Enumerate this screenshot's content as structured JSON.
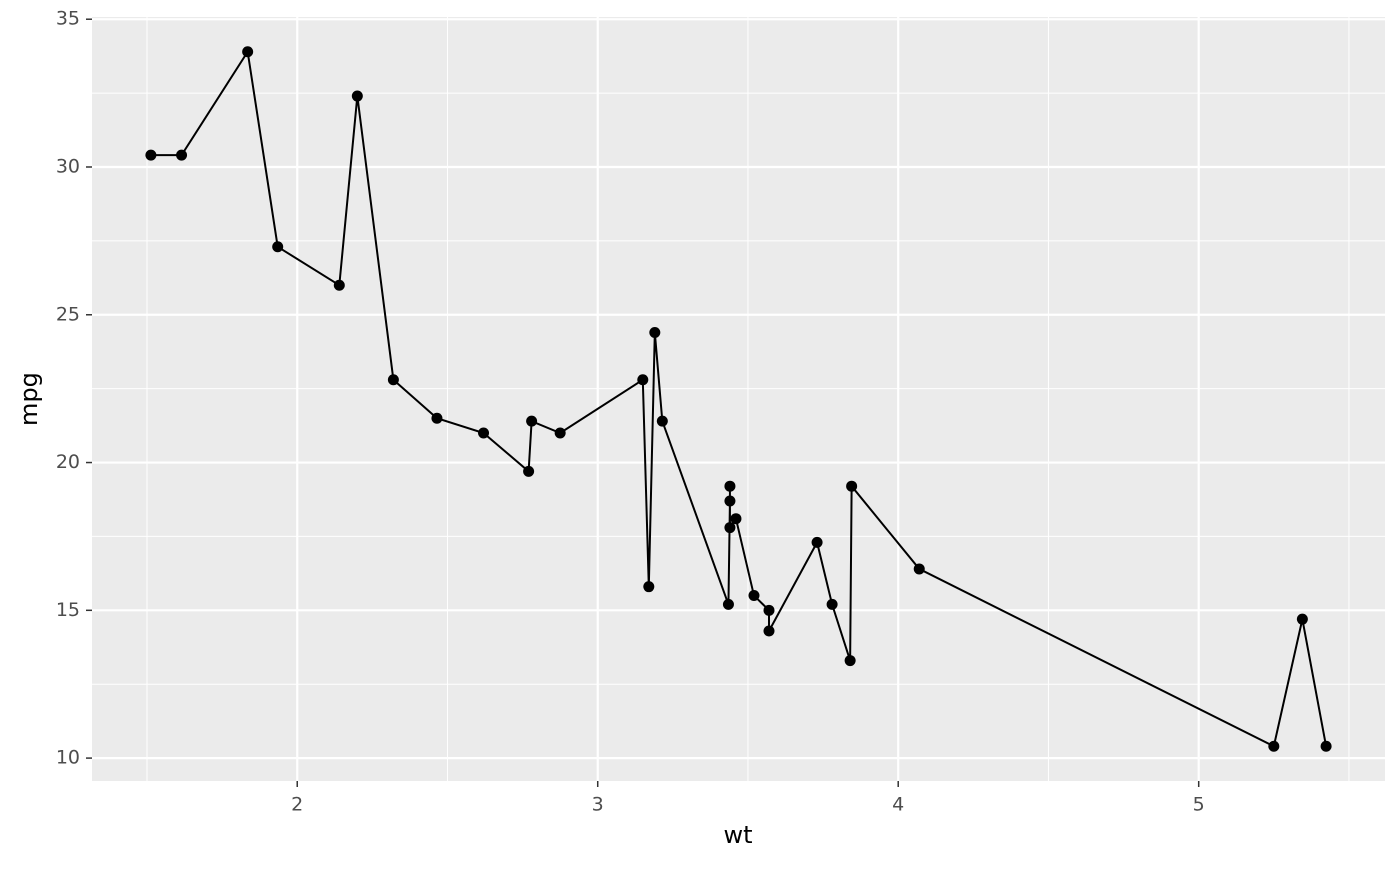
{
  "chart_data": {
    "type": "line",
    "x_label": "wt",
    "y_label": "mpg",
    "x": [
      1.513,
      1.615,
      1.835,
      1.935,
      2.14,
      2.2,
      2.32,
      2.465,
      2.62,
      2.77,
      2.78,
      2.875,
      3.15,
      3.17,
      3.19,
      3.215,
      3.435,
      3.44,
      3.44,
      3.44,
      3.46,
      3.52,
      3.57,
      3.57,
      3.73,
      3.78,
      3.84,
      3.845,
      4.07,
      5.25,
      5.345,
      5.424
    ],
    "series": [
      {
        "color": "#000000",
        "values": [
          30.4,
          30.4,
          33.9,
          27.3,
          26.0,
          32.4,
          22.8,
          21.5,
          21.0,
          19.7,
          21.4,
          21.0,
          22.8,
          15.8,
          24.4,
          21.4,
          15.2,
          18.7,
          19.2,
          17.8,
          18.1,
          15.5,
          15.0,
          14.3,
          17.3,
          15.2,
          13.3,
          19.2,
          16.4,
          10.4,
          14.7,
          10.4
        ]
      }
    ],
    "xlim": [
      1.317,
      5.62
    ],
    "ylim": [
      9.225,
      35.075
    ],
    "xticks": [
      2,
      3,
      4,
      5
    ],
    "yticks": [
      10,
      15,
      20,
      25,
      30,
      35
    ],
    "xminor": [
      1.5,
      2.5,
      3.5,
      4.5,
      5.5
    ],
    "yminor": [
      12.5,
      17.5,
      22.5,
      27.5,
      32.5
    ],
    "grid": true,
    "panel_color": "#ebebeb"
  }
}
